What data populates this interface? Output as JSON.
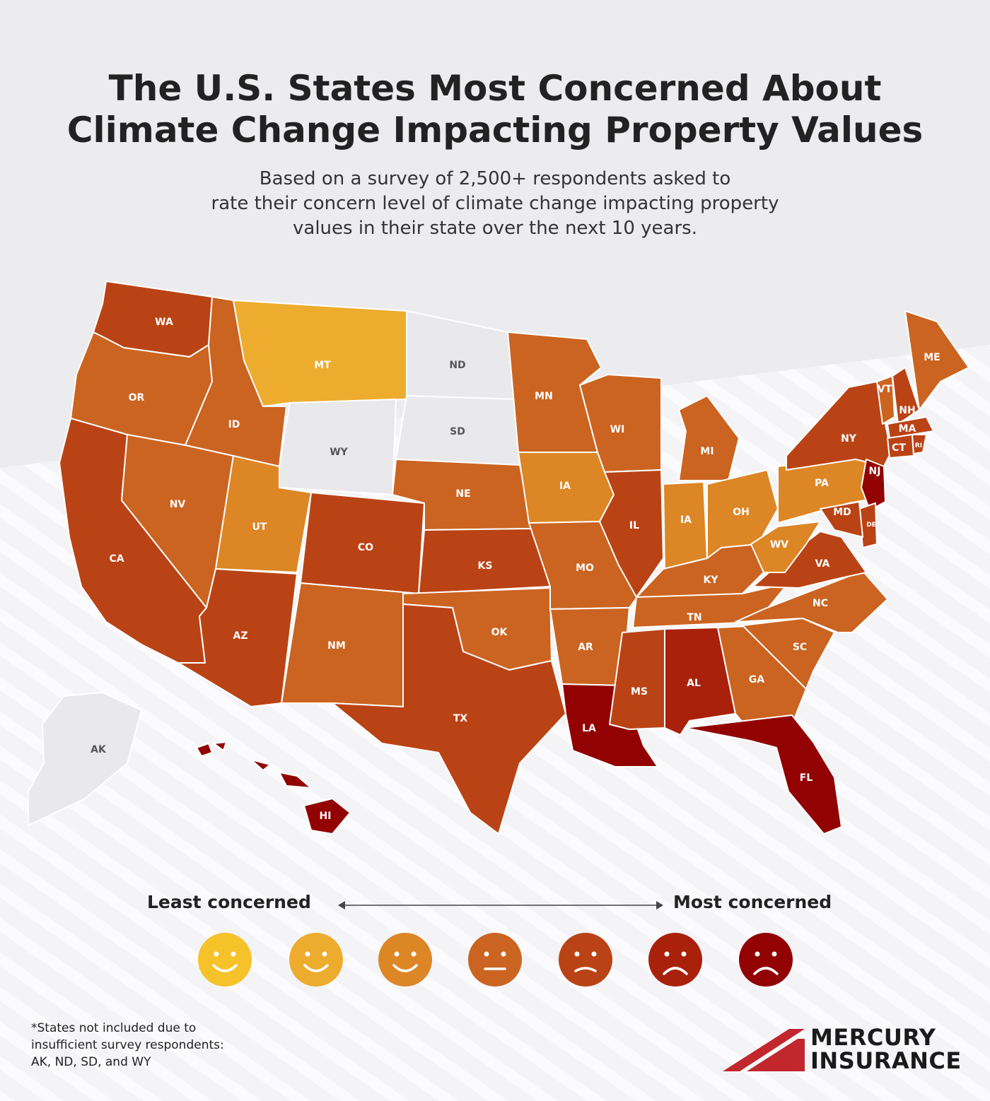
{
  "title_line1": "The U.S. States Most Concerned About",
  "title_line2": "Climate Change Impacting Property Values",
  "subtitle_line1": "Based on a survey of 2,500+ respondents asked to",
  "subtitle_line2": "rate their concern level of climate change impacting property",
  "subtitle_line3": "values in their state over the next 10 years.",
  "legend": {
    "least_label": "Least concerned",
    "most_label": "Most concerned",
    "levels": [
      {
        "color": "#F5C22A",
        "mouth": "smile"
      },
      {
        "color": "#EDAC2E",
        "mouth": "smile"
      },
      {
        "color": "#DD8626",
        "mouth": "smile"
      },
      {
        "color": "#CB6421",
        "mouth": "neutral"
      },
      {
        "color": "#BA4315",
        "mouth": "slight-frown"
      },
      {
        "color": "#A9210B",
        "mouth": "frown"
      },
      {
        "color": "#920202",
        "mouth": "frown"
      }
    ],
    "not_included_color": "#E9E9EC"
  },
  "states": [
    {
      "abbr": "WA",
      "level": 5
    },
    {
      "abbr": "OR",
      "level": 4
    },
    {
      "abbr": "CA",
      "level": 5
    },
    {
      "abbr": "ID",
      "level": 4
    },
    {
      "abbr": "NV",
      "level": 4
    },
    {
      "abbr": "MT",
      "level": 2
    },
    {
      "abbr": "WY",
      "level": 0
    },
    {
      "abbr": "UT",
      "level": 3
    },
    {
      "abbr": "AZ",
      "level": 5
    },
    {
      "abbr": "CO",
      "level": 5
    },
    {
      "abbr": "NM",
      "level": 4
    },
    {
      "abbr": "ND",
      "level": 0
    },
    {
      "abbr": "SD",
      "level": 0
    },
    {
      "abbr": "NE",
      "level": 4
    },
    {
      "abbr": "KS",
      "level": 5
    },
    {
      "abbr": "OK",
      "level": 4
    },
    {
      "abbr": "TX",
      "level": 5
    },
    {
      "abbr": "MN",
      "level": 4
    },
    {
      "abbr": "IA",
      "level": 3
    },
    {
      "abbr": "MO",
      "level": 4
    },
    {
      "abbr": "AR",
      "level": 4
    },
    {
      "abbr": "LA",
      "level": 7
    },
    {
      "abbr": "WI",
      "level": 4
    },
    {
      "abbr": "IL",
      "level": 5
    },
    {
      "abbr": "MI",
      "level": 4
    },
    {
      "abbr": "IA",
      "level": 3
    },
    {
      "abbr": "OH",
      "level": 3
    },
    {
      "abbr": "KY",
      "level": 4
    },
    {
      "abbr": "TN",
      "level": 4
    },
    {
      "abbr": "MS",
      "level": 5
    },
    {
      "abbr": "AL",
      "level": 6
    },
    {
      "abbr": "GA",
      "level": 4
    },
    {
      "abbr": "FL",
      "level": 7
    },
    {
      "abbr": "SC",
      "level": 4
    },
    {
      "abbr": "NC",
      "level": 4
    },
    {
      "abbr": "VA",
      "level": 5
    },
    {
      "abbr": "WV",
      "level": 3
    },
    {
      "abbr": "PA",
      "level": 3
    },
    {
      "abbr": "NY",
      "level": 5
    },
    {
      "abbr": "VT",
      "level": 4
    },
    {
      "abbr": "NH",
      "level": 5
    },
    {
      "abbr": "ME",
      "level": 4
    },
    {
      "abbr": "MA",
      "level": 5
    },
    {
      "abbr": "CT",
      "level": 5
    },
    {
      "abbr": "RI",
      "level": 5
    },
    {
      "abbr": "NJ",
      "level": 7
    },
    {
      "abbr": "DE",
      "level": 5
    },
    {
      "abbr": "MD",
      "level": 5
    },
    {
      "abbr": "AK",
      "level": 0
    },
    {
      "abbr": "HI",
      "level": 7
    }
  ],
  "footnote_line1": "*States not included due to",
  "footnote_line2": "insufficient survey respondents:",
  "footnote_line3": "AK, ND, SD, and WY",
  "logo_line1": "MERCURY",
  "logo_line2": "INSURANCE",
  "brand_color": "#C1272D"
}
